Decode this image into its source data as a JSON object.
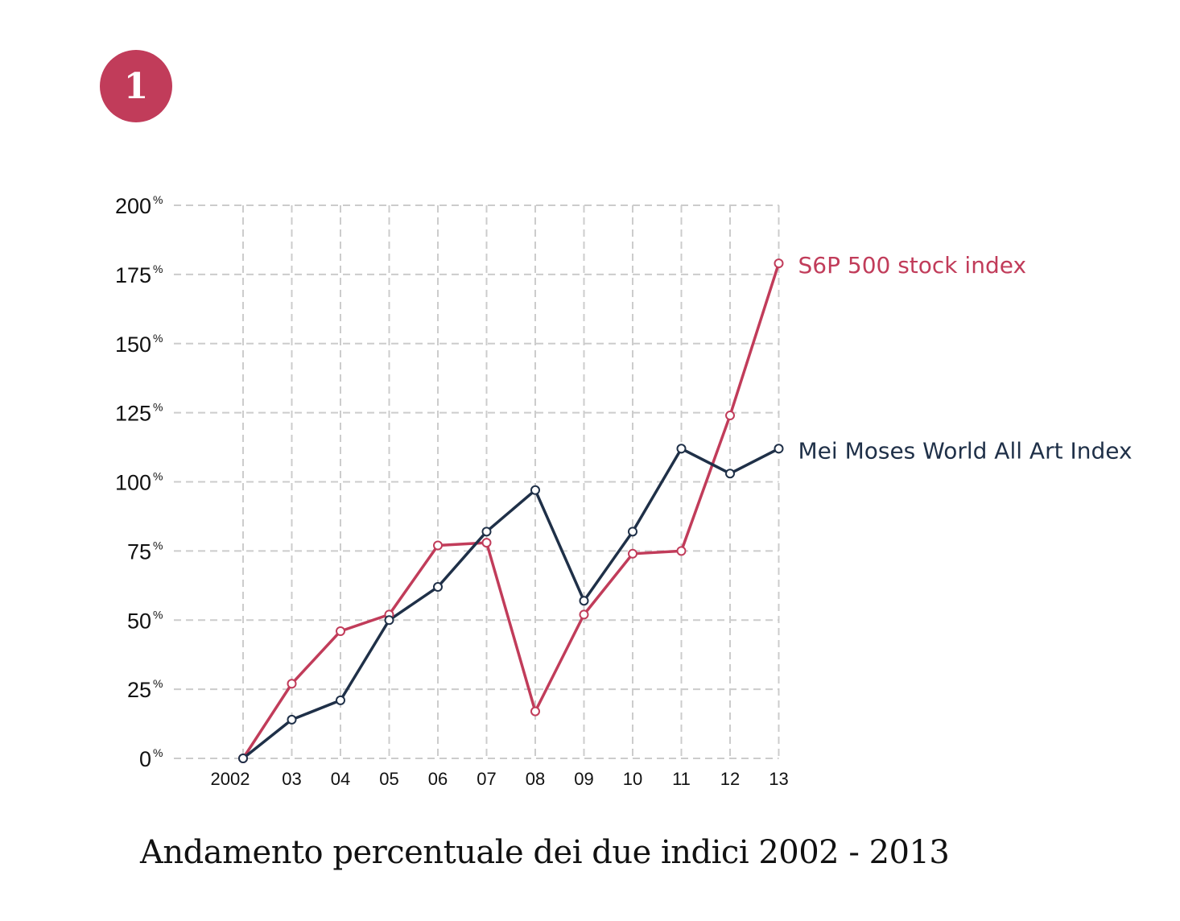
{
  "badge": {
    "number": "1",
    "color": "#c13c5a"
  },
  "caption": "Andamento percentuale dei due indici 2002 - 2013",
  "chart_data": {
    "type": "line",
    "categories": [
      "2002",
      "03",
      "04",
      "05",
      "06",
      "07",
      "08",
      "09",
      "10",
      "11",
      "12",
      "13"
    ],
    "y_ticks": [
      {
        "value": 0,
        "label": "0",
        "unit": "%"
      },
      {
        "value": 25,
        "label": "25",
        "unit": "%"
      },
      {
        "value": 50,
        "label": "50",
        "unit": "%"
      },
      {
        "value": 75,
        "label": "75",
        "unit": "%"
      },
      {
        "value": 100,
        "label": "100",
        "unit": "%"
      },
      {
        "value": 125,
        "label": "125",
        "unit": "%"
      },
      {
        "value": 150,
        "label": "150",
        "unit": "%"
      },
      {
        "value": 175,
        "label": "175",
        "unit": "%"
      },
      {
        "value": 200,
        "label": "200",
        "unit": "%"
      }
    ],
    "ylim": [
      0,
      200
    ],
    "grid": true,
    "legend": "right-end labels",
    "series": [
      {
        "name": "S6P 500 stock index",
        "color": "#c13c5a",
        "values": [
          0,
          27,
          46,
          52,
          77,
          78,
          17,
          52,
          74,
          75,
          124,
          179
        ]
      },
      {
        "name": "Mei Moses World All Art Index",
        "color": "#1f3048",
        "values": [
          0,
          14,
          21,
          50,
          62,
          82,
          97,
          57,
          82,
          112,
          103,
          112
        ]
      }
    ]
  }
}
